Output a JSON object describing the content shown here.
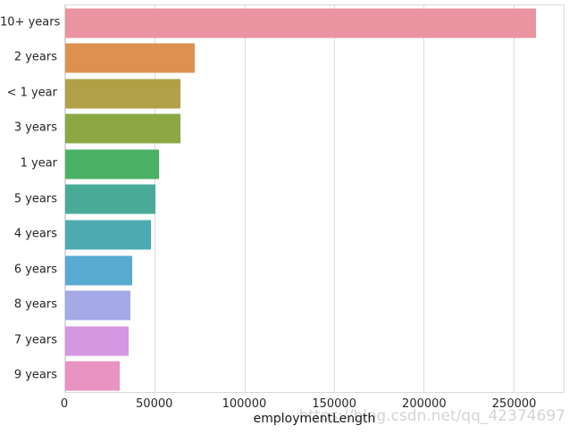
{
  "watermark": "https://blog.csdn.net/qq_42374697",
  "chart_data": {
    "type": "bar",
    "orientation": "horizontal",
    "title": "",
    "xlabel": "employmentLength",
    "ylabel": "",
    "categories": [
      "10+ years",
      "2 years",
      "< 1 year",
      "3 years",
      "1 year",
      "5 years",
      "4 years",
      "6 years",
      "8 years",
      "7 years",
      "9 years"
    ],
    "values": [
      262753,
      72358,
      64237,
      64152,
      52489,
      50102,
      47985,
      37254,
      36192,
      35407,
      30272
    ],
    "bar_colors": [
      "#ea93a1",
      "#dc9150",
      "#b1a046",
      "#8ba845",
      "#4bb165",
      "#49ab97",
      "#4caab1",
      "#58aad2",
      "#a5a9e5",
      "#d497e1",
      "#e893c2"
    ],
    "x_ticks": [
      0,
      50000,
      100000,
      150000,
      200000,
      250000
    ],
    "x_tick_labels": [
      "0",
      "50000",
      "100000",
      "150000",
      "200000",
      "250000"
    ],
    "xlim": [
      0,
      278000
    ],
    "grid": "vertical",
    "legend": "none",
    "background_color": "#ffffff",
    "grid_color": "#dcdcdc"
  }
}
